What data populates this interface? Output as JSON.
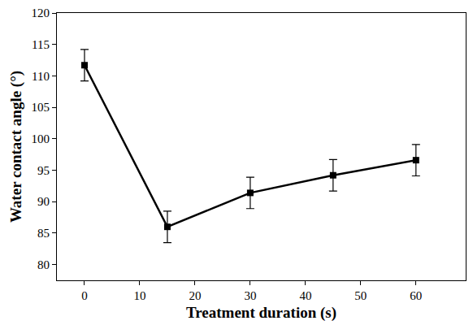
{
  "chart_data": {
    "type": "line",
    "x_label": "Treatment duration (s)",
    "y_label": "Water contact angle (°)",
    "x": [
      0,
      15,
      30,
      45,
      60
    ],
    "series": [
      {
        "name": "Water contact angle",
        "color": "#000000",
        "marker": "square",
        "line_style": "solid",
        "values": [
          111.7,
          86.0,
          91.4,
          94.2,
          96.6
        ],
        "error": [
          2.5,
          2.5,
          2.5,
          2.5,
          2.5
        ]
      }
    ],
    "xlim": [
      -5,
      69
    ],
    "xticks": [
      0,
      10,
      20,
      30,
      40,
      50,
      60
    ],
    "ylim": [
      77.5,
      120
    ],
    "yticks": [
      80,
      85,
      90,
      95,
      100,
      105,
      110,
      115,
      120
    ],
    "grid": false
  }
}
